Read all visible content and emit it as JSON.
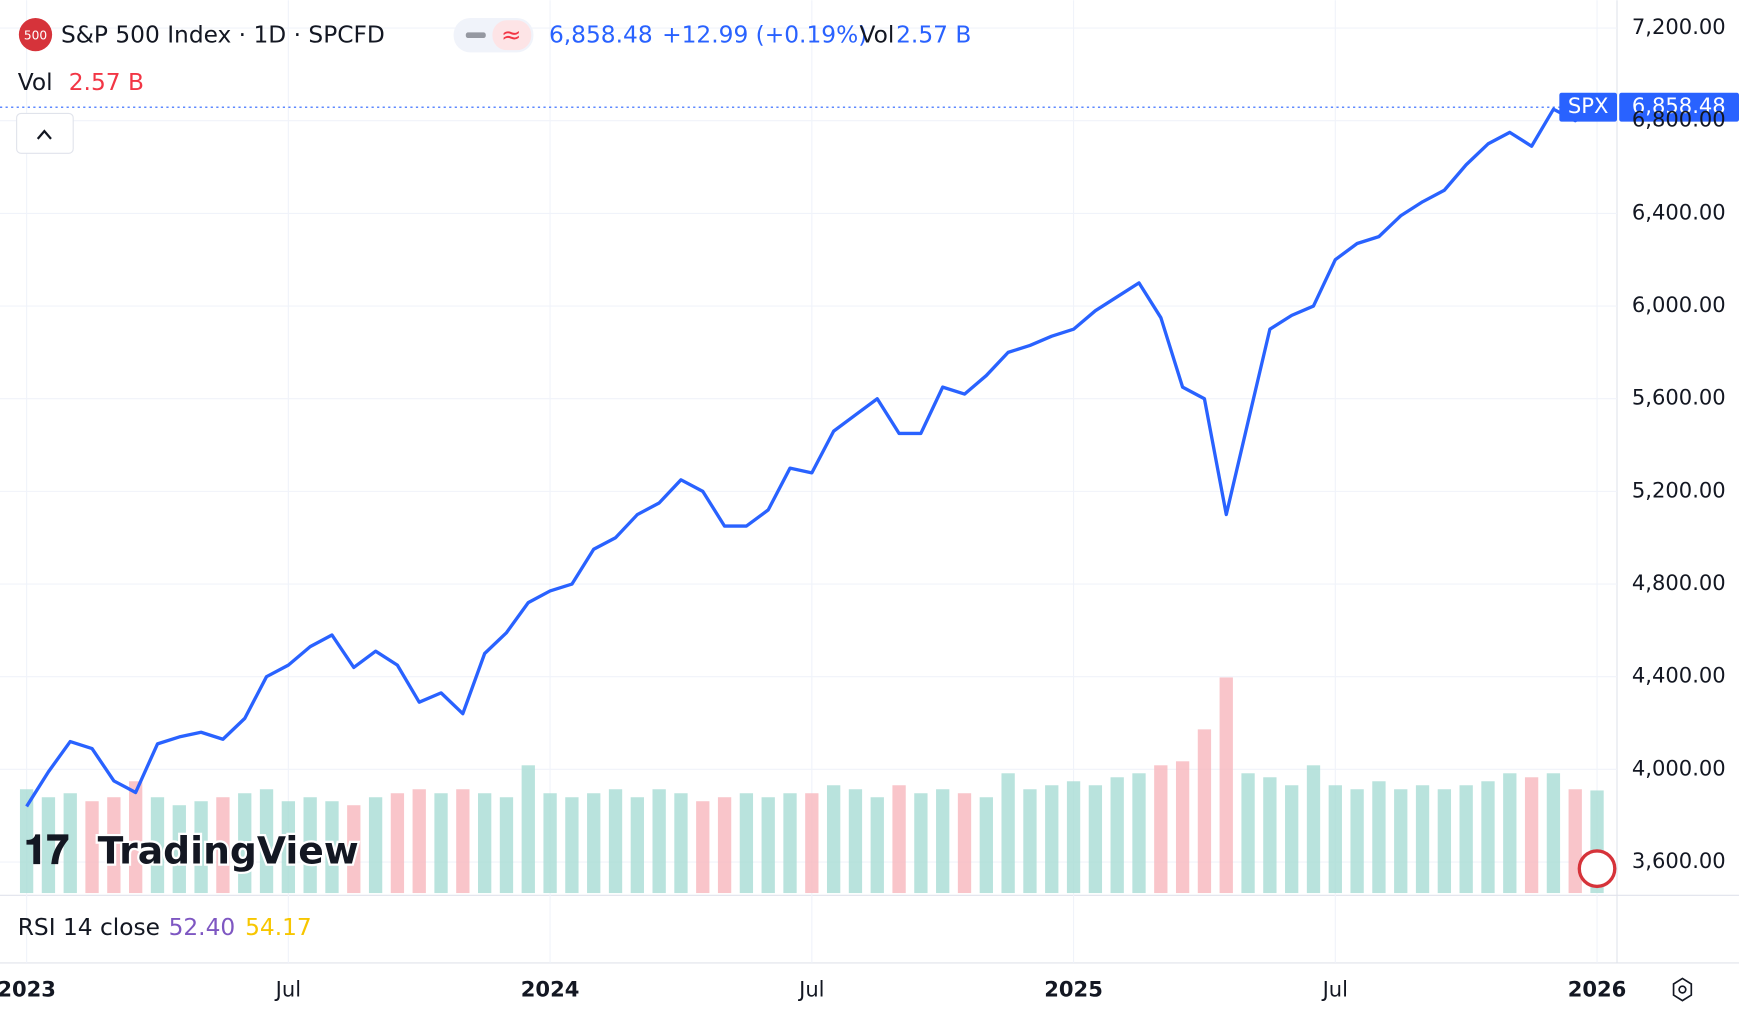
{
  "header": {
    "logo": "500",
    "title": "S&P 500 Index · 1D · SPCFD",
    "price": "6,858.48",
    "change": "+12.99 (+0.19%)",
    "vol_label": "Vol",
    "vol_value": "2.57 B",
    "vol_legend": "Vol",
    "vol_legend_value": "2.57 B",
    "symbol": "SPX",
    "price_tag": "6,858.48",
    "rsi_label": "RSI 14 close",
    "rsi_value": "52.40",
    "rsi_ma": "54.17",
    "watermark": "TradingView"
  },
  "chart_data": {
    "type": "line",
    "categories": [
      "2023",
      null,
      null,
      null,
      null,
      null,
      null,
      null,
      null,
      null,
      null,
      null,
      "Jul",
      null,
      null,
      null,
      null,
      null,
      null,
      null,
      null,
      null,
      null,
      null,
      "2024",
      null,
      null,
      null,
      null,
      null,
      null,
      null,
      null,
      null,
      null,
      null,
      "Jul",
      null,
      null,
      null,
      null,
      null,
      null,
      null,
      null,
      null,
      null,
      null,
      "2025",
      null,
      null,
      null,
      null,
      null,
      null,
      null,
      null,
      null,
      null,
      null,
      "Jul",
      null,
      null,
      null,
      null,
      null,
      null,
      null,
      null,
      null,
      null,
      null,
      "2026"
    ],
    "series": [
      {
        "name": "SPX",
        "color": "#2962ff",
        "values": [
          3840,
          3990,
          4120,
          4090,
          3950,
          3900,
          4110,
          4140,
          4160,
          4130,
          4220,
          4400,
          4450,
          4530,
          4580,
          4440,
          4510,
          4450,
          4290,
          4330,
          4240,
          4500,
          4590,
          4720,
          4770,
          4800,
          4950,
          5000,
          5100,
          5150,
          5250,
          5200,
          5050,
          5050,
          5120,
          5300,
          5280,
          5460,
          5530,
          5600,
          5450,
          5450,
          5650,
          5620,
          5700,
          5800,
          5830,
          5870,
          5900,
          5980,
          6040,
          6100,
          5950,
          5650,
          5600,
          5100,
          5500,
          5900,
          5960,
          6000,
          6200,
          6270,
          6300,
          6390,
          6450,
          6500,
          6610,
          6700,
          6750,
          6690,
          6850,
          6800,
          6858.48
        ]
      }
    ],
    "volume": [
      2.6,
      2.4,
      2.5,
      2.3,
      2.4,
      2.8,
      2.4,
      2.2,
      2.3,
      2.4,
      2.5,
      2.6,
      2.3,
      2.4,
      2.3,
      2.2,
      2.4,
      2.5,
      2.6,
      2.5,
      2.6,
      2.5,
      2.4,
      3.2,
      2.5,
      2.4,
      2.5,
      2.6,
      2.4,
      2.6,
      2.5,
      2.3,
      2.4,
      2.5,
      2.4,
      2.5,
      2.5,
      2.7,
      2.6,
      2.4,
      2.7,
      2.5,
      2.6,
      2.5,
      2.4,
      3.0,
      2.6,
      2.7,
      2.8,
      2.7,
      2.9,
      3.0,
      3.2,
      3.3,
      4.1,
      5.4,
      3.0,
      2.9,
      2.7,
      3.2,
      2.7,
      2.6,
      2.8,
      2.6,
      2.7,
      2.6,
      2.7,
      2.8,
      3.0,
      2.9,
      3.0,
      2.6,
      2.57
    ],
    "ylim": [
      3466,
      7320
    ],
    "yticks": [
      {
        "value": 3600,
        "label": "3,600.00"
      },
      {
        "value": 4000,
        "label": "4,000.00"
      },
      {
        "value": 4400,
        "label": "4,400.00"
      },
      {
        "value": 4800,
        "label": "4,800.00"
      },
      {
        "value": 5200,
        "label": "5,200.00"
      },
      {
        "value": 5600,
        "label": "5,600.00"
      },
      {
        "value": 6000,
        "label": "6,000.00"
      },
      {
        "value": 6400,
        "label": "6,400.00"
      },
      {
        "value": 6800,
        "label": "6,800.00"
      },
      {
        "value": 7200,
        "label": "7,200.00"
      }
    ],
    "grid": true
  }
}
